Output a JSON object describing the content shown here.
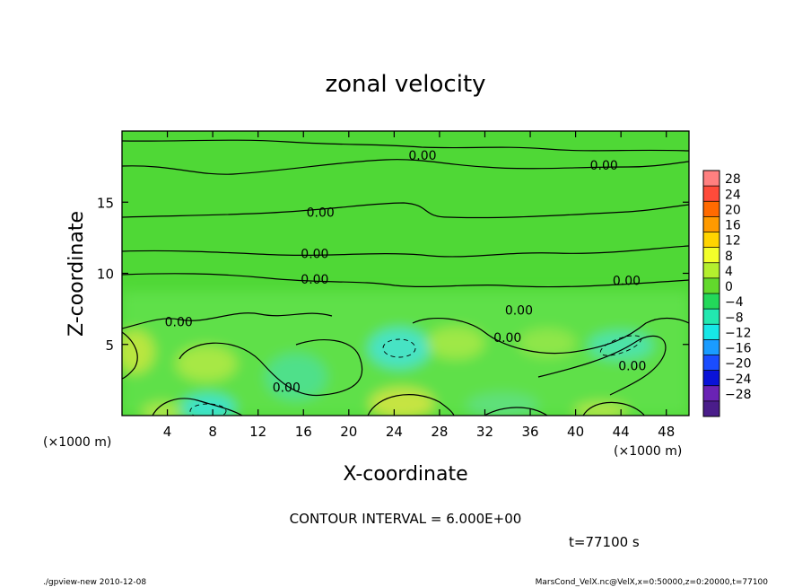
{
  "chart_data": {
    "type": "heatmap",
    "title": "zonal velocity",
    "xlabel": "X-coordinate",
    "ylabel": "Z-coordinate",
    "x_unit_label": "(×1000 m)",
    "z_unit_label": "(×1000 m)",
    "xlim": [
      0,
      50
    ],
    "ylim": [
      0,
      20
    ],
    "x_ticks": [
      4,
      8,
      12,
      16,
      20,
      24,
      28,
      32,
      36,
      40,
      44,
      48
    ],
    "y_ticks": [
      5,
      10,
      15
    ],
    "colorbar": {
      "labels": [
        28,
        24,
        20,
        16,
        12,
        8,
        4,
        0,
        -4,
        -8,
        -12,
        -16,
        -20,
        -24,
        -28
      ],
      "colors": [
        "#ff8080",
        "#ff4b3a",
        "#ff6a00",
        "#ff9a00",
        "#ffd400",
        "#f3ff2a",
        "#b4ef2e",
        "#62d92c",
        "#23d85a",
        "#22e8b0",
        "#16e7e7",
        "#1a9cff",
        "#1a4dff",
        "#0a13d8",
        "#6a23b5",
        "#4a1d8a"
      ]
    },
    "contour_labels": [
      {
        "x": 26.5,
        "z": 18.3,
        "text": "0.00"
      },
      {
        "x": 42.5,
        "z": 17.6,
        "text": "0.00"
      },
      {
        "x": 17.5,
        "z": 14.3,
        "text": "0.00"
      },
      {
        "x": 17.0,
        "z": 11.4,
        "text": "0.00"
      },
      {
        "x": 17.0,
        "z": 9.6,
        "text": "0.00"
      },
      {
        "x": 44.5,
        "z": 9.5,
        "text": "0.00"
      },
      {
        "x": 5.0,
        "z": 6.6,
        "text": "0.00"
      },
      {
        "x": 35.0,
        "z": 7.4,
        "text": "0.00"
      },
      {
        "x": 34.0,
        "z": 5.5,
        "text": "0.00"
      },
      {
        "x": 45.0,
        "z": 3.5,
        "text": "0.00"
      },
      {
        "x": 14.5,
        "z": 2.0,
        "text": "0.00"
      }
    ],
    "contour_interval_text": "CONTOUR INTERVAL = 6.000E+00",
    "time_text": "t=77100 s"
  },
  "footer": {
    "left": "./gpview-new  2010-12-08",
    "right": "MarsCond_VelX.nc@VelX,x=0:50000,z=0:20000,t=77100"
  }
}
